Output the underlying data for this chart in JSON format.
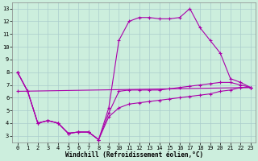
{
  "xlabel": "Windchill (Refroidissement éolien,°C)",
  "background_color": "#cceedd",
  "grid_color": "#aacccc",
  "line_color": "#aa00aa",
  "x_ticks": [
    0,
    1,
    2,
    3,
    4,
    5,
    6,
    7,
    8,
    9,
    10,
    11,
    12,
    13,
    14,
    15,
    16,
    17,
    18,
    19,
    20,
    21,
    22,
    23
  ],
  "y_ticks": [
    3,
    4,
    5,
    6,
    7,
    8,
    9,
    10,
    11,
    12,
    13
  ],
  "xlim": [
    -0.5,
    23.5
  ],
  "ylim": [
    2.5,
    13.5
  ],
  "lines": [
    {
      "x": [
        0,
        1,
        2,
        3,
        4,
        5,
        6,
        7,
        8,
        9,
        10,
        11,
        12,
        13,
        14,
        15,
        16,
        17,
        18,
        19,
        20,
        21,
        22,
        23
      ],
      "y": [
        8.0,
        6.5,
        4.0,
        4.2,
        4.0,
        3.2,
        3.3,
        3.3,
        2.7,
        5.2,
        10.5,
        12.0,
        12.3,
        12.3,
        12.2,
        12.2,
        12.3,
        13.0,
        11.5,
        10.5,
        9.5,
        7.5,
        7.2,
        6.8
      ]
    },
    {
      "x": [
        0,
        1,
        2,
        3,
        4,
        5,
        6,
        7,
        8,
        9,
        10,
        11,
        12,
        13,
        14,
        15,
        16,
        17,
        18,
        19,
        20,
        21,
        22,
        23
      ],
      "y": [
        8.0,
        6.5,
        4.0,
        4.2,
        4.0,
        3.2,
        3.3,
        3.3,
        2.7,
        4.8,
        6.5,
        6.6,
        6.6,
        6.6,
        6.6,
        6.7,
        6.8,
        6.9,
        7.0,
        7.1,
        7.2,
        7.2,
        7.0,
        6.8
      ]
    },
    {
      "x": [
        0,
        1,
        2,
        3,
        4,
        5,
        6,
        7,
        8,
        9,
        10,
        11,
        12,
        13,
        14,
        15,
        16,
        17,
        18,
        19,
        20,
        21,
        22,
        23
      ],
      "y": [
        8.0,
        6.5,
        4.0,
        4.2,
        4.0,
        3.2,
        3.3,
        3.3,
        2.7,
        4.5,
        5.2,
        5.5,
        5.6,
        5.7,
        5.8,
        5.9,
        6.0,
        6.1,
        6.2,
        6.3,
        6.5,
        6.6,
        6.8,
        6.8
      ]
    },
    {
      "x": [
        0,
        23
      ],
      "y": [
        6.5,
        6.8
      ]
    }
  ]
}
